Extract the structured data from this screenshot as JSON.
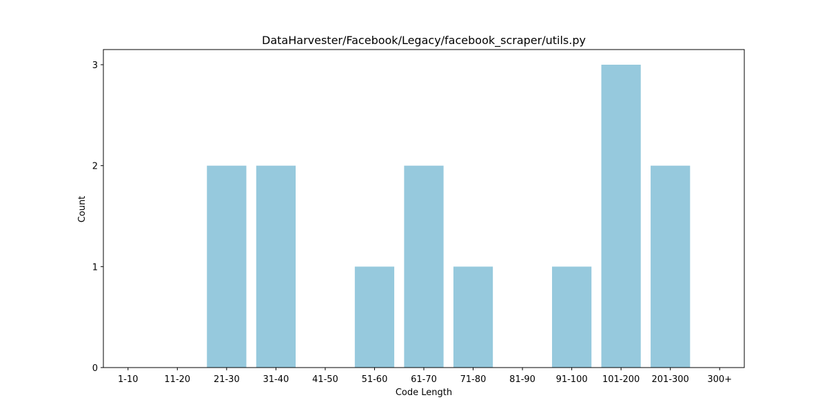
{
  "chart_data": {
    "type": "bar",
    "title": "DataHarvester/Facebook/Legacy/facebook_scraper/utils.py",
    "xlabel": "Code Length",
    "ylabel": "Count",
    "categories": [
      "1-10",
      "11-20",
      "21-30",
      "31-40",
      "41-50",
      "51-60",
      "61-70",
      "71-80",
      "81-90",
      "91-100",
      "101-200",
      "201-300",
      "300+"
    ],
    "values": [
      0,
      0,
      2,
      2,
      0,
      1,
      2,
      1,
      0,
      1,
      3,
      2,
      0
    ],
    "yticks": [
      0,
      1,
      2,
      3
    ],
    "ylim": [
      0,
      3.15
    ],
    "grid": false,
    "bar_color": "#96c9dd"
  }
}
